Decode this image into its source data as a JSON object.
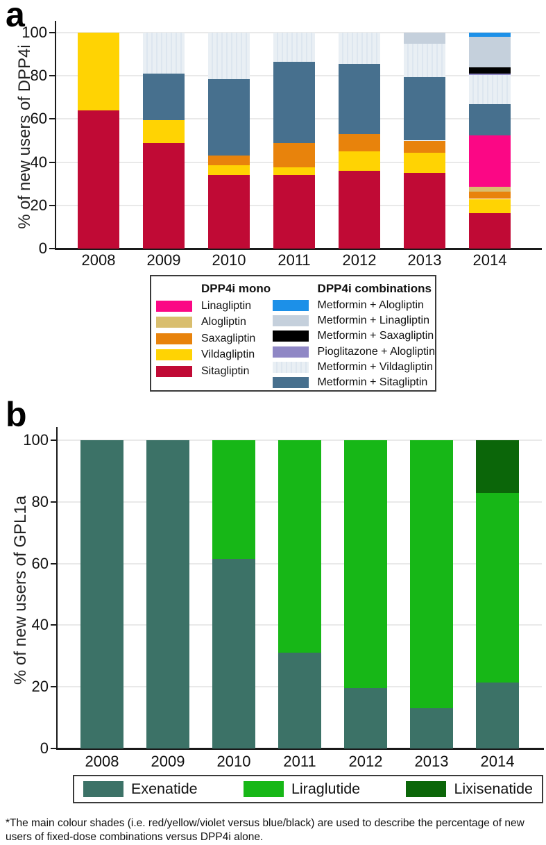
{
  "figure": {
    "panel_a_label": "a",
    "panel_b_label": "b",
    "footnote": "*The main colour shades (i.e. red/yellow/violet versus blue/black) are used to describe the percentage of new users of fixed-dose combinations versus DPP4i alone."
  },
  "chart_data": [
    {
      "id": "a",
      "type": "bar",
      "stacked": true,
      "title": "",
      "ylabel": "% of new users of DPP4i",
      "xlabel": "",
      "ylim": [
        0,
        100
      ],
      "yticks": [
        0,
        20,
        40,
        60,
        80,
        100
      ],
      "grid": true,
      "legend_position": "below-box",
      "categories": [
        "2008",
        "2009",
        "2010",
        "2011",
        "2012",
        "2013",
        "2014"
      ],
      "series": [
        {
          "name": "Sitagliptin",
          "color": "#C00A35",
          "values": [
            64,
            49,
            34,
            34,
            36,
            35,
            16.5
          ]
        },
        {
          "name": "Vildagliptin",
          "color": "#FFD303",
          "values": [
            36,
            10.5,
            4.5,
            3.5,
            9,
            9.5,
            6.5
          ]
        },
        {
          "name": "Saxagliptin",
          "color": "#E8830C",
          "values": [
            0,
            0,
            4.5,
            11.5,
            8,
            5.5,
            3.5
          ]
        },
        {
          "name": "Alogliptin",
          "color": "#D9BE6E",
          "values": [
            0,
            0,
            0,
            0,
            0,
            0,
            2
          ]
        },
        {
          "name": "Linagliptin",
          "color": "#FB0785",
          "values": [
            0,
            0,
            0,
            0,
            0,
            0,
            24
          ]
        },
        {
          "name": "Metformin + Sitagliptin",
          "color": "#47708E",
          "values": [
            0,
            21.5,
            35.5,
            37.5,
            32.5,
            29.5,
            14.5
          ]
        },
        {
          "name": "Metformin + Vildagliptin",
          "color": "#E9EFF4",
          "striped": true,
          "stripe_color": "#DDE6EF",
          "values": [
            0,
            19,
            21.5,
            13.5,
            14.5,
            15.5,
            13.5
          ]
        },
        {
          "name": "Pioglitazone + Alogliptin",
          "color": "#8F87C5",
          "values": [
            0,
            0,
            0,
            0,
            0,
            0,
            0.5
          ]
        },
        {
          "name": "Metformin + Saxagliptin",
          "color": "#000000",
          "values": [
            0,
            0,
            0,
            0,
            0,
            0,
            3
          ]
        },
        {
          "name": "Metformin + Linagliptin",
          "color": "#C5D0DC",
          "values": [
            0,
            0,
            0,
            0,
            0,
            5,
            14
          ]
        },
        {
          "name": "Metformin + Alogliptin",
          "color": "#1C90E8",
          "values": [
            0,
            0,
            0,
            0,
            0,
            0,
            2
          ]
        }
      ]
    },
    {
      "id": "b",
      "type": "bar",
      "stacked": true,
      "title": "",
      "ylabel": "% of new users of GPL1a",
      "xlabel": "",
      "ylim": [
        0,
        100
      ],
      "yticks": [
        0,
        20,
        40,
        60,
        80,
        100
      ],
      "grid": true,
      "legend_position": "below-box",
      "categories": [
        "2008",
        "2009",
        "2010",
        "2011",
        "2012",
        "2013",
        "2014"
      ],
      "series": [
        {
          "name": "Exenatide",
          "color": "#3C7267",
          "values": [
            100,
            100,
            61.5,
            31,
            19.5,
            13,
            21.5
          ]
        },
        {
          "name": "Liraglutide",
          "color": "#17B717",
          "values": [
            0,
            0,
            38.5,
            69,
            80.5,
            87,
            61.5
          ]
        },
        {
          "name": "Lixisenatide",
          "color": "#0B6609",
          "values": [
            0,
            0,
            0,
            0,
            0,
            0,
            17
          ]
        }
      ]
    }
  ],
  "legend_a": {
    "columns": [
      {
        "title": "DPP4i mono",
        "items": [
          "Linagliptin",
          "Alogliptin",
          "Saxagliptin",
          "Vildagliptin",
          "Sitagliptin"
        ]
      },
      {
        "title": "DPP4i combinations",
        "items": [
          "Metformin + Alogliptin",
          "Metformin + Linagliptin",
          "Metformin + Saxagliptin",
          "Pioglitazone + Alogliptin",
          "Metformin + Vildagliptin",
          "Metformin + Sitagliptin"
        ]
      }
    ]
  },
  "legend_b": {
    "items": [
      "Exenatide",
      "Liraglutide",
      "Lixisenatide"
    ]
  }
}
